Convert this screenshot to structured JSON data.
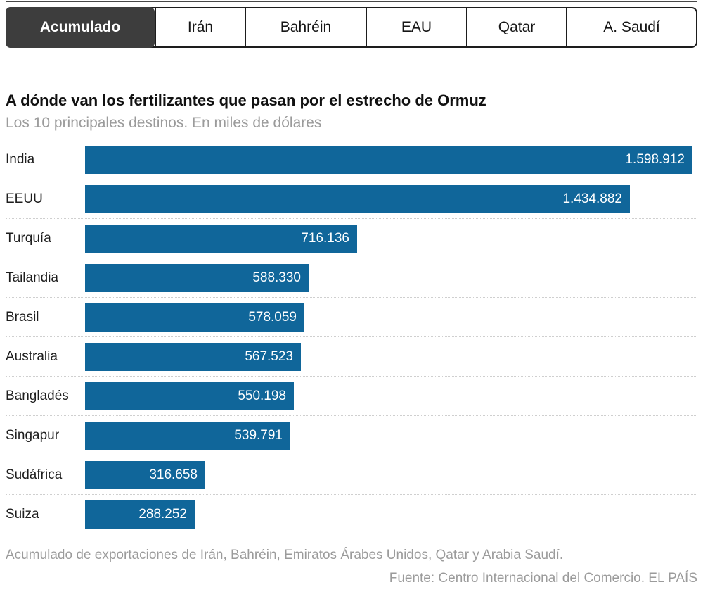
{
  "tabs": {
    "items": [
      {
        "label": "Acumulado",
        "selected": true
      },
      {
        "label": "Irán",
        "selected": false
      },
      {
        "label": "Bahréin",
        "selected": false
      },
      {
        "label": "EAU",
        "selected": false
      },
      {
        "label": "Qatar",
        "selected": false
      },
      {
        "label": "A. Saudí",
        "selected": false
      }
    ]
  },
  "chart_data": {
    "type": "bar",
    "orientation": "horizontal",
    "title": "A dónde van los fertilizantes que pasan por el estrecho de Ormuz",
    "subtitle": "Los 10 principales destinos. En miles de dólares",
    "unit": "miles de dólares",
    "categories": [
      "India",
      "EEUU",
      "Turquía",
      "Tailandia",
      "Brasil",
      "Australia",
      "Bangladés",
      "Singapur",
      "Sudáfrica",
      "Suiza"
    ],
    "values": [
      1598912,
      1434882,
      716136,
      588330,
      578059,
      567523,
      550198,
      539791,
      316658,
      288252
    ],
    "value_labels": [
      "1.598.912",
      "1.434.882",
      "716.136",
      "588.330",
      "578.059",
      "567.523",
      "550.198",
      "539.791",
      "316.658",
      "288.252"
    ],
    "xlim": [
      0,
      1598912
    ],
    "grid": false,
    "legend": false,
    "value_label_position": "inside-end",
    "bar_color": "#10669a",
    "value_label_color": "#ffffff"
  },
  "footer": {
    "note": "Acumulado de exportaciones de Irán, Bahréin, Emiratos Árabes Unidos, Qatar y Arabia Saudí.",
    "source": "Fuente: Centro Internacional del Comercio. EL PAÍS"
  },
  "colors": {
    "bar": "#10669a",
    "selected_tab_bg": "#3d3d3d",
    "selected_tab_text": "#ffffff",
    "tab_border": "#1d1d1d",
    "title_text": "#111111",
    "muted_text": "#9b9b9b",
    "row_separator": "#cfcfcf",
    "top_rule": "#474747"
  }
}
